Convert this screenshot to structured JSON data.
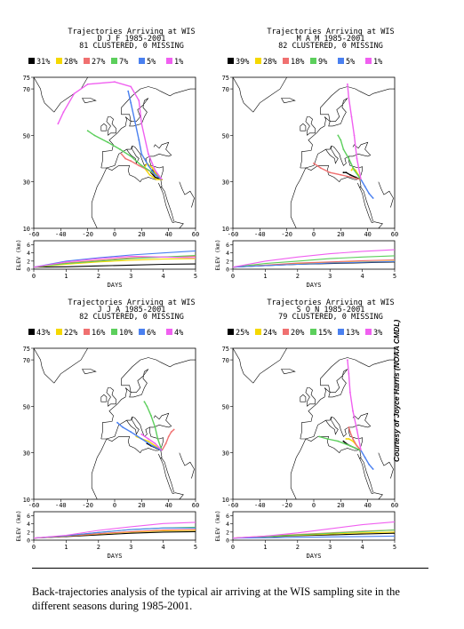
{
  "caption": "Back-trajectories analysis of the typical air arriving at the WIS sampling site in the different seasons during 1985-2001.",
  "credit": "Courtesy of Joyce Harris (NOAA CMDL)",
  "chart_data": [
    {
      "type": "line",
      "title": "Trajectories Arriving at WIS",
      "subtitle1": "D J F  1985-2001",
      "subtitle2": "81 CLUSTERED, 0 MISSING",
      "legend": [
        {
          "pct": "31%",
          "color": "#000000"
        },
        {
          "pct": "28%",
          "color": "#f5d800"
        },
        {
          "pct": "27%",
          "color": "#f07070"
        },
        {
          "pct": "7%",
          "color": "#5ccf5c"
        },
        {
          "pct": "5%",
          "color": "#4a80f0"
        },
        {
          "pct": "1%",
          "color": "#f060f0"
        }
      ],
      "map": {
        "xticks": [
          "-60",
          "-40",
          "-20",
          "0",
          "20",
          "40",
          "60"
        ],
        "yticks": [
          "75",
          "70",
          "50",
          "30",
          "10"
        ],
        "trajectories": [
          {
            "color": "#000000",
            "lon": [
              35,
              32,
              30,
              28,
              27,
              30,
              35
            ],
            "lat": [
              31,
              32.5,
              34,
              35,
              34,
              32,
              31
            ]
          },
          {
            "color": "#f5d800",
            "lon": [
              35,
              31,
              28,
              24,
              22,
              26,
              31,
              35
            ],
            "lat": [
              31,
              33,
              36,
              38,
              36,
              33,
              31,
              31
            ]
          },
          {
            "color": "#f07070",
            "lon": [
              35,
              30,
              25,
              18,
              12,
              8,
              5
            ],
            "lat": [
              31,
              33,
              35,
              37,
              39,
              40,
              42
            ]
          },
          {
            "color": "#5ccf5c",
            "lon": [
              35,
              28,
              20,
              12,
              4,
              -5,
              -15,
              -20
            ],
            "lat": [
              31,
              34,
              37,
              41,
              44,
              47,
              50,
              52
            ]
          },
          {
            "color": "#4a80f0",
            "lon": [
              35,
              30,
              25,
              20,
              18,
              15,
              12,
              10
            ],
            "lat": [
              31,
              33,
              37,
              42,
              48,
              56,
              64,
              69
            ]
          },
          {
            "color": "#f060f0",
            "lon": [
              35,
              30,
              25,
              20,
              18,
              12,
              0,
              -20,
              -30,
              -38,
              -42
            ],
            "lat": [
              31,
              35,
              42,
              55,
              65,
              71,
              73,
              72,
              68,
              60,
              55
            ]
          }
        ]
      },
      "elev": {
        "xlabel": "DAYS",
        "ylabel": "ELEV (km)",
        "xticks": [
          "0",
          "1",
          "2",
          "3",
          "4",
          "5"
        ],
        "yticks": [
          "6",
          "4",
          "2",
          "0"
        ],
        "series": [
          {
            "color": "#000000",
            "values": [
              0.5,
              0.6,
              0.8,
              1.0,
              1.2,
              1.3
            ]
          },
          {
            "color": "#f5d800",
            "values": [
              0.5,
              1.2,
              1.8,
              2.2,
              2.5,
              2.6
            ]
          },
          {
            "color": "#f07070",
            "values": [
              0.5,
              1.5,
              2.2,
              2.8,
              3.0,
              3.2
            ]
          },
          {
            "color": "#5ccf5c",
            "values": [
              0.5,
              1.4,
              2.0,
              2.6,
              3.0,
              3.4
            ]
          },
          {
            "color": "#4a80f0",
            "values": [
              0.5,
              2.0,
              2.8,
              3.5,
              4.0,
              4.5
            ]
          },
          {
            "color": "#f060f0",
            "values": [
              0.5,
              1.8,
              2.6,
              3.2,
              3.0,
              2.8
            ]
          }
        ]
      }
    },
    {
      "type": "line",
      "title": "Trajectories Arriving at WIS",
      "subtitle1": "M A M  1985-2001",
      "subtitle2": "82 CLUSTERED, 0 MISSING",
      "legend": [
        {
          "pct": "39%",
          "color": "#000000"
        },
        {
          "pct": "28%",
          "color": "#f5d800"
        },
        {
          "pct": "18%",
          "color": "#f07070"
        },
        {
          "pct": "9%",
          "color": "#5ccf5c"
        },
        {
          "pct": "5%",
          "color": "#4a80f0"
        },
        {
          "pct": "1%",
          "color": "#f060f0"
        }
      ],
      "map": {
        "xticks": [
          "-60",
          "-40",
          "-20",
          "0",
          "20",
          "40",
          "60"
        ],
        "yticks": [
          "75",
          "70",
          "50",
          "30",
          "10"
        ],
        "trajectories": [
          {
            "color": "#000000",
            "lon": [
              35,
              31,
              27,
              24,
              22
            ],
            "lat": [
              31,
              32,
              33,
              34,
              34
            ]
          },
          {
            "color": "#f5d800",
            "lon": [
              35,
              33,
              31,
              29,
              28
            ],
            "lat": [
              31,
              33,
              35,
              36,
              35
            ]
          },
          {
            "color": "#f07070",
            "lon": [
              35,
              28,
              20,
              12,
              5,
              0
            ],
            "lat": [
              31,
              32,
              33,
              34,
              36,
              38
            ]
          },
          {
            "color": "#5ccf5c",
            "lon": [
              35,
              30,
              26,
              22,
              20,
              18
            ],
            "lat": [
              31,
              35,
              40,
              44,
              48,
              50
            ]
          },
          {
            "color": "#4a80f0",
            "lon": [
              35,
              38,
              41,
              44
            ],
            "lat": [
              31,
              28,
              25,
              23
            ]
          },
          {
            "color": "#f060f0",
            "lon": [
              35,
              32,
              30,
              28,
              26,
              25
            ],
            "lat": [
              31,
              40,
              50,
              58,
              66,
              72
            ]
          }
        ]
      },
      "elev": {
        "xlabel": "DAYS",
        "ylabel": "ELEV (km)",
        "xticks": [
          "0",
          "1",
          "2",
          "3",
          "4",
          "5"
        ],
        "yticks": [
          "6",
          "4",
          "2",
          "0"
        ],
        "series": [
          {
            "color": "#000000",
            "values": [
              0.5,
              0.9,
              1.2,
              1.4,
              1.6,
              1.8
            ]
          },
          {
            "color": "#f5d800",
            "values": [
              0.5,
              1.0,
              1.4,
              1.6,
              1.8,
              2.0
            ]
          },
          {
            "color": "#f07070",
            "values": [
              0.5,
              1.0,
              1.5,
              1.8,
              2.1,
              2.3
            ]
          },
          {
            "color": "#5ccf5c",
            "values": [
              0.5,
              1.4,
              2.0,
              2.6,
              3.0,
              3.3
            ]
          },
          {
            "color": "#4a80f0",
            "values": [
              0.5,
              0.9,
              1.2,
              1.5,
              1.7,
              1.9
            ]
          },
          {
            "color": "#f060f0",
            "values": [
              0.5,
              2.0,
              3.0,
              3.8,
              4.4,
              4.8
            ]
          }
        ]
      }
    },
    {
      "type": "line",
      "title": "Trajectories Arriving at WIS",
      "subtitle1": "J J A  1985-2001",
      "subtitle2": "82 CLUSTERED, 0 MISSING",
      "legend": [
        {
          "pct": "43%",
          "color": "#000000"
        },
        {
          "pct": "22%",
          "color": "#f5d800"
        },
        {
          "pct": "16%",
          "color": "#f07070"
        },
        {
          "pct": "10%",
          "color": "#5ccf5c"
        },
        {
          "pct": "6%",
          "color": "#4a80f0"
        },
        {
          "pct": "4%",
          "color": "#f060f0"
        }
      ],
      "map": {
        "xticks": [
          "-60",
          "-40",
          "-20",
          "0",
          "20",
          "40",
          "60"
        ],
        "yticks": [
          "75",
          "70",
          "50",
          "30",
          "10"
        ],
        "trajectories": [
          {
            "color": "#000000",
            "lon": [
              35,
              31,
              27,
              24
            ],
            "lat": [
              31,
              32,
              33,
              34
            ]
          },
          {
            "color": "#f5d800",
            "lon": [
              35,
              30,
              25,
              20,
              16
            ],
            "lat": [
              31,
              33,
              35,
              36,
              37
            ]
          },
          {
            "color": "#f07070",
            "lon": [
              35,
              38,
              40,
              42,
              44
            ],
            "lat": [
              31,
              34,
              37,
              39,
              40
            ]
          },
          {
            "color": "#5ccf5c",
            "lon": [
              35,
              32,
              30,
              27,
              24,
              22
            ],
            "lat": [
              31,
              36,
              41,
              46,
              50,
              52
            ]
          },
          {
            "color": "#4a80f0",
            "lon": [
              35,
              28,
              20,
              12,
              6,
              2
            ],
            "lat": [
              31,
              33,
              36,
              39,
              41,
              43
            ]
          },
          {
            "color": "#f060f0",
            "lon": [
              35,
              30,
              25,
              20
            ],
            "lat": [
              31,
              34,
              36,
              38
            ]
          }
        ]
      },
      "elev": {
        "xlabel": "DAYS",
        "ylabel": "ELEV (km)",
        "xticks": [
          "0",
          "1",
          "2",
          "3",
          "4",
          "5"
        ],
        "yticks": [
          "6",
          "4",
          "2",
          "0"
        ],
        "series": [
          {
            "color": "#000000",
            "values": [
              0.5,
              0.9,
              1.3,
              1.7,
              2.0,
              2.1
            ]
          },
          {
            "color": "#f5d800",
            "values": [
              0.5,
              1.0,
              1.5,
              2.0,
              2.3,
              2.4
            ]
          },
          {
            "color": "#f07070",
            "values": [
              0.5,
              1.0,
              1.6,
              2.1,
              2.5,
              2.6
            ]
          },
          {
            "color": "#5ccf5c",
            "values": [
              0.5,
              1.1,
              1.9,
              2.6,
              3.0,
              3.2
            ]
          },
          {
            "color": "#4a80f0",
            "values": [
              0.5,
              1.1,
              1.9,
              2.6,
              3.0,
              3.0
            ]
          },
          {
            "color": "#f060f0",
            "values": [
              0.5,
              1.2,
              2.4,
              3.3,
              4.1,
              4.4
            ]
          }
        ]
      }
    },
    {
      "type": "line",
      "title": "Trajectories Arriving at WIS",
      "subtitle1": "S O N  1985-2001",
      "subtitle2": "79 CLUSTERED, 0 MISSING",
      "legend": [
        {
          "pct": "25%",
          "color": "#000000"
        },
        {
          "pct": "24%",
          "color": "#f5d800"
        },
        {
          "pct": "20%",
          "color": "#f07070"
        },
        {
          "pct": "15%",
          "color": "#5ccf5c"
        },
        {
          "pct": "13%",
          "color": "#4a80f0"
        },
        {
          "pct": "3%",
          "color": "#f060f0"
        }
      ],
      "map": {
        "xticks": [
          "-60",
          "-40",
          "-20",
          "0",
          "20",
          "40",
          "60"
        ],
        "yticks": [
          "75",
          "70",
          "50",
          "30",
          "10"
        ],
        "trajectories": [
          {
            "color": "#000000",
            "lon": [
              35,
              31,
              27,
              24,
              22
            ],
            "lat": [
              31,
              32,
              33,
              34,
              35
            ]
          },
          {
            "color": "#f5d800",
            "lon": [
              35,
              32,
              29,
              26,
              24
            ],
            "lat": [
              31,
              33,
              35,
              36,
              36
            ]
          },
          {
            "color": "#f07070",
            "lon": [
              35,
              32,
              29,
              27,
              26
            ],
            "lat": [
              31,
              33,
              36,
              39,
              41
            ]
          },
          {
            "color": "#5ccf5c",
            "lon": [
              35,
              27,
              18,
              10,
              4
            ],
            "lat": [
              31,
              33,
              35,
              36,
              37
            ]
          },
          {
            "color": "#4a80f0",
            "lon": [
              35,
              38,
              41,
              44
            ],
            "lat": [
              31,
              28,
              25,
              23
            ]
          },
          {
            "color": "#f060f0",
            "lon": [
              35,
              32,
              29,
              27,
              26,
              25
            ],
            "lat": [
              31,
              40,
              48,
              56,
              64,
              70
            ]
          }
        ]
      },
      "elev": {
        "xlabel": "DAYS",
        "ylabel": "ELEV (km)",
        "xticks": [
          "0",
          "1",
          "2",
          "3",
          "4",
          "5"
        ],
        "yticks": [
          "6",
          "4",
          "2",
          "0"
        ],
        "series": [
          {
            "color": "#000000",
            "values": [
              0.5,
              0.8,
              1.1,
              1.3,
              1.5,
              1.7
            ]
          },
          {
            "color": "#f5d800",
            "values": [
              0.5,
              0.9,
              1.2,
              1.5,
              1.8,
              2.0
            ]
          },
          {
            "color": "#f07070",
            "values": [
              0.5,
              1.0,
              1.4,
              1.8,
              2.2,
              2.5
            ]
          },
          {
            "color": "#5ccf5c",
            "values": [
              0.5,
              0.9,
              1.3,
              1.7,
              2.1,
              2.5
            ]
          },
          {
            "color": "#4a80f0",
            "values": [
              0.5,
              0.6,
              0.7,
              0.8,
              0.9,
              1.0
            ]
          },
          {
            "color": "#f060f0",
            "values": [
              0.5,
              1.0,
              1.8,
              2.8,
              3.8,
              4.5
            ]
          }
        ]
      }
    }
  ]
}
